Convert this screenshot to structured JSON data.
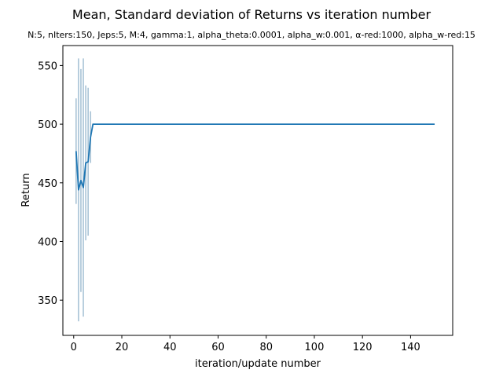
{
  "chart_data": {
    "type": "line",
    "title": "Mean, Standard deviation of Returns vs iteration number",
    "subtitle": "N:5, nIters:150, Jeps:5, M:4, gamma:1, alpha_theta:0.0001, alpha_w:0.001, α-red:1000, alpha_w-red:15",
    "xlabel": "iteration/update number",
    "ylabel": "Return",
    "xlim": [
      -4.5,
      157.5
    ],
    "ylim": [
      320,
      567
    ],
    "xticks": [
      0,
      20,
      40,
      60,
      80,
      100,
      120,
      140
    ],
    "yticks": [
      350,
      400,
      450,
      500,
      550
    ],
    "grid": false,
    "colors": {
      "mean_line": "#1f77b4",
      "error_bars": "#a3bfd3"
    },
    "series": [
      {
        "x": [
          1,
          2,
          3,
          4,
          5,
          6,
          7,
          8,
          150
        ],
        "mean": [
          477,
          444,
          452,
          446,
          467,
          468,
          489,
          500,
          500
        ],
        "std": [
          45,
          112,
          95,
          110,
          66,
          63,
          22,
          0,
          0
        ]
      }
    ]
  }
}
